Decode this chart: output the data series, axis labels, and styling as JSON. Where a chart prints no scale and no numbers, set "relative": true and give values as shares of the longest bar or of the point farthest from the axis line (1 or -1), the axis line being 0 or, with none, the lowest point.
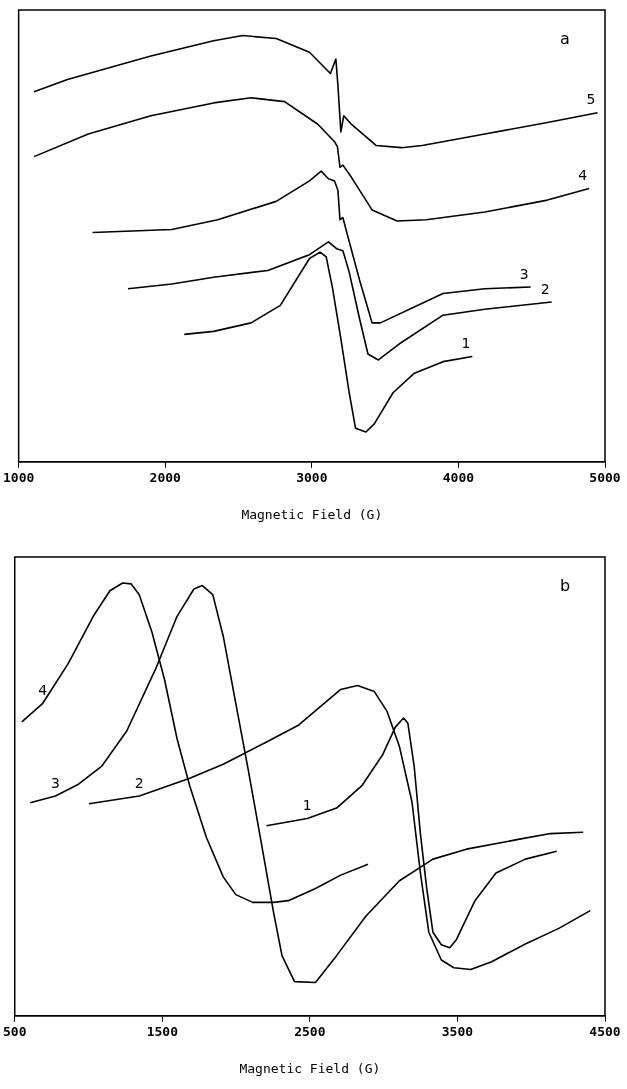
{
  "chart_data": [
    {
      "type": "line",
      "relative": true,
      "xlabel": "Magnetic Field (G)",
      "annotations": [
        "a"
      ],
      "xlim": [
        1000,
        5000
      ],
      "xticks": [
        1000,
        2000,
        3000,
        4000,
        5000
      ],
      "grid": false,
      "legend": false,
      "marker": "none",
      "line_style": "solid",
      "series": [
        {
          "name": "5",
          "color": "#000000",
          "x": [
            1105,
            1333,
            1902,
            2330,
            2529,
            2757,
            2984,
            3127,
            3164,
            3178,
            3198,
            3218,
            3269,
            3440,
            3611,
            3753,
            4180,
            4607,
            4949
          ],
          "values": [
            0.868,
            0.897,
            0.952,
            0.988,
            1.0,
            0.993,
            0.961,
            0.911,
            0.945,
            0.883,
            0.774,
            0.812,
            0.792,
            0.742,
            0.737,
            0.742,
            0.769,
            0.796,
            0.819
          ]
        },
        {
          "name": "4",
          "color": "#000000",
          "x": [
            1105,
            1475,
            1902,
            2330,
            2586,
            2814,
            3041,
            3155,
            3175,
            3192,
            3212,
            3269,
            3411,
            3582,
            3781,
            4180,
            4607,
            4892
          ],
          "values": [
            0.716,
            0.769,
            0.812,
            0.842,
            0.854,
            0.845,
            0.792,
            0.751,
            0.739,
            0.691,
            0.696,
            0.668,
            0.591,
            0.565,
            0.568,
            0.586,
            0.614,
            0.641
          ]
        },
        {
          "name": "3",
          "color": "#000000",
          "x": [
            1504,
            2045,
            2358,
            2757,
            2984,
            3064,
            3113,
            3155,
            3178,
            3192,
            3212,
            3240,
            3326,
            3411,
            3468,
            3753,
            3895,
            4180,
            4493
          ],
          "values": [
            0.538,
            0.545,
            0.568,
            0.611,
            0.659,
            0.682,
            0.664,
            0.659,
            0.637,
            0.568,
            0.573,
            0.536,
            0.426,
            0.326,
            0.326,
            0.372,
            0.395,
            0.406,
            0.41
          ]
        },
        {
          "name": "2",
          "color": "#000000",
          "x": [
            1746,
            2045,
            2330,
            2700,
            2984,
            3113,
            3169,
            3212,
            3255,
            3326,
            3383,
            3454,
            3611,
            3895,
            4180,
            4636
          ],
          "values": [
            0.406,
            0.417,
            0.433,
            0.449,
            0.486,
            0.516,
            0.5,
            0.495,
            0.445,
            0.335,
            0.253,
            0.239,
            0.28,
            0.344,
            0.358,
            0.375
          ]
        },
        {
          "name": "1",
          "color": "#000000",
          "x": [
            2130,
            2330,
            2586,
            2785,
            2984,
            3056,
            3098,
            3141,
            3198,
            3255,
            3298,
            3369,
            3426,
            3554,
            3696,
            3895,
            4095
          ],
          "values": [
            0.299,
            0.306,
            0.326,
            0.367,
            0.477,
            0.492,
            0.481,
            0.408,
            0.289,
            0.162,
            0.079,
            0.07,
            0.089,
            0.162,
            0.207,
            0.235,
            0.247
          ]
        }
      ]
    },
    {
      "type": "line",
      "relative": true,
      "xlabel": "Magnetic Field (G)",
      "annotations": [
        "b"
      ],
      "xlim": [
        500,
        4500
      ],
      "xticks": [
        500,
        1500,
        2500,
        3500,
        4500
      ],
      "grid": false,
      "legend": false,
      "marker": "none",
      "line_style": "solid",
      "series": [
        {
          "name": "4",
          "color": "#000000",
          "x": [
            548,
            690,
            861,
            1032,
            1145,
            1231,
            1288,
            1344,
            1430,
            1515,
            1600,
            1686,
            1799,
            1913,
            1998,
            2112,
            2254,
            2354,
            2538,
            2709,
            2894
          ],
          "values": [
            0.679,
            0.722,
            0.813,
            0.923,
            0.982,
            1.0,
            0.998,
            0.973,
            0.886,
            0.777,
            0.64,
            0.531,
            0.412,
            0.321,
            0.28,
            0.262,
            0.262,
            0.266,
            0.294,
            0.325,
            0.35
          ]
        },
        {
          "name": "3",
          "color": "#000000",
          "x": [
            605,
            776,
            932,
            1088,
            1259,
            1458,
            1600,
            1714,
            1771,
            1842,
            1913,
            1998,
            2083,
            2169,
            2254,
            2311,
            2396,
            2538,
            2681,
            2879,
            3107,
            3334,
            3561,
            3903,
            4130,
            4352
          ],
          "values": [
            0.492,
            0.508,
            0.535,
            0.576,
            0.658,
            0.804,
            0.923,
            0.986,
            0.994,
            0.973,
            0.877,
            0.722,
            0.567,
            0.403,
            0.239,
            0.139,
            0.079,
            0.077,
            0.139,
            0.23,
            0.312,
            0.362,
            0.385,
            0.407,
            0.421,
            0.424
          ]
        },
        {
          "name": "2",
          "color": "#000000",
          "x": [
            1003,
            1344,
            1686,
            1913,
            2197,
            2425,
            2567,
            2709,
            2823,
            2937,
            3022,
            3107,
            3192,
            3249,
            3306,
            3391,
            3476,
            3590,
            3732,
            3960,
            4187,
            4400
          ],
          "values": [
            0.49,
            0.508,
            0.549,
            0.581,
            0.631,
            0.672,
            0.713,
            0.754,
            0.763,
            0.749,
            0.704,
            0.622,
            0.494,
            0.33,
            0.193,
            0.129,
            0.111,
            0.107,
            0.125,
            0.166,
            0.202,
            0.243
          ]
        },
        {
          "name": "1",
          "color": "#000000",
          "x": [
            2206,
            2482,
            2681,
            2851,
            2993,
            3079,
            3135,
            3164,
            3207,
            3249,
            3292,
            3334,
            3391,
            3448,
            3491,
            3619,
            3761,
            3960,
            4173
          ],
          "values": [
            0.439,
            0.456,
            0.48,
            0.531,
            0.603,
            0.667,
            0.688,
            0.676,
            0.576,
            0.421,
            0.294,
            0.193,
            0.164,
            0.157,
            0.175,
            0.266,
            0.33,
            0.362,
            0.38
          ]
        }
      ]
    }
  ]
}
